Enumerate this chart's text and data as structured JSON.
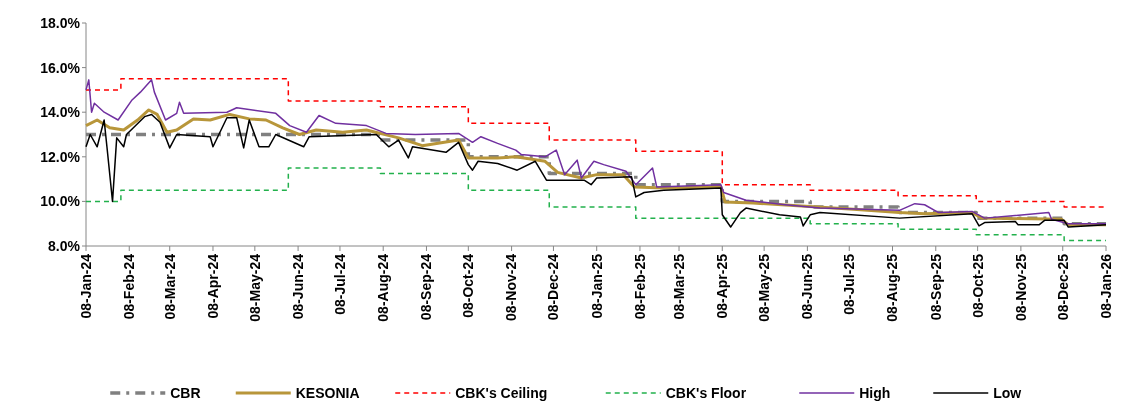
{
  "chart_data": {
    "type": "line",
    "xlim": [
      "2024-01-08",
      "2026-01-08"
    ],
    "xticks": [
      {
        "value": "2024-01-08",
        "label": "08-Jan-24"
      },
      {
        "value": "2024-02-08",
        "label": "08-Feb-24"
      },
      {
        "value": "2024-03-08",
        "label": "08-Mar-24"
      },
      {
        "value": "2024-04-08",
        "label": "08-Apr-24"
      },
      {
        "value": "2024-05-08",
        "label": "08-May-24"
      },
      {
        "value": "2024-06-08",
        "label": "08-Jun-24"
      },
      {
        "value": "2024-07-08",
        "label": "08-Jul-24"
      },
      {
        "value": "2024-08-08",
        "label": "08-Aug-24"
      },
      {
        "value": "2024-09-08",
        "label": "08-Sep-24"
      },
      {
        "value": "2024-10-08",
        "label": "08-Oct-24"
      },
      {
        "value": "2024-11-08",
        "label": "08-Nov-24"
      },
      {
        "value": "2024-12-08",
        "label": "08-Dec-24"
      },
      {
        "value": "2025-01-08",
        "label": "08-Jan-25"
      },
      {
        "value": "2025-02-08",
        "label": "08-Feb-25"
      },
      {
        "value": "2025-03-08",
        "label": "08-Mar-25"
      },
      {
        "value": "2025-04-08",
        "label": "08-Apr-25"
      },
      {
        "value": "2025-05-08",
        "label": "08-May-25"
      },
      {
        "value": "2025-06-08",
        "label": "08-Jun-25"
      },
      {
        "value": "2025-07-08",
        "label": "08-Jul-25"
      },
      {
        "value": "2025-08-08",
        "label": "08-Aug-25"
      },
      {
        "value": "2025-09-08",
        "label": "08-Sep-25"
      },
      {
        "value": "2025-10-08",
        "label": "08-Oct-25"
      },
      {
        "value": "2025-11-08",
        "label": "08-Nov-25"
      },
      {
        "value": "2025-12-08",
        "label": "08-Dec-25"
      },
      {
        "value": "2026-01-08",
        "label": "08-Jan-26"
      }
    ],
    "ylim": [
      8,
      18
    ],
    "yticks": [
      {
        "value": 8,
        "label": "8.0%"
      },
      {
        "value": 10,
        "label": "10.0%"
      },
      {
        "value": 12,
        "label": "12.0%"
      },
      {
        "value": 14,
        "label": "14.0%"
      },
      {
        "value": 16,
        "label": "16.0%"
      },
      {
        "value": 18,
        "label": "18.0%"
      }
    ],
    "grid": false,
    "legend": "bottom",
    "series": [
      {
        "name": "CBR",
        "type": "step",
        "color": "#808080",
        "line_style": "dashed",
        "x": [
          "2024-01-08",
          "2024-08-06",
          "2024-10-08",
          "2024-12-05",
          "2025-02-05",
          "2025-04-08",
          "2025-06-10",
          "2025-08-12",
          "2025-10-07",
          "2025-12-09",
          "2026-01-08"
        ],
        "values": [
          13,
          12.75,
          12,
          11.25,
          10.75,
          10,
          9.75,
          9.5,
          9.25,
          9,
          9
        ]
      },
      {
        "name": "KESONIA",
        "color": "#b8963a",
        "line_style": "solid",
        "x": [
          "2024-01-08",
          "2024-01-16",
          "2024-01-25",
          "2024-02-04",
          "2024-02-14",
          "2024-02-22",
          "2024-02-28",
          "2024-03-06",
          "2024-03-13",
          "2024-03-25",
          "2024-04-06",
          "2024-04-20",
          "2024-05-04",
          "2024-05-16",
          "2024-05-28",
          "2024-06-09",
          "2024-06-21",
          "2024-07-10",
          "2024-07-27",
          "2024-08-19",
          "2024-09-05",
          "2024-10-01",
          "2024-10-08",
          "2024-10-29",
          "2024-11-11",
          "2024-12-02",
          "2024-12-11",
          "2024-12-28",
          "2025-01-08",
          "2025-01-27",
          "2025-02-04",
          "2025-02-25",
          "2025-04-07",
          "2025-04-10",
          "2025-04-30",
          "2025-06-01",
          "2025-07-11",
          "2025-08-13",
          "2025-08-31",
          "2025-10-04",
          "2025-10-11",
          "2025-12-07",
          "2025-12-12",
          "2026-01-08"
        ],
        "values": [
          13.4,
          13.65,
          13.3,
          13.2,
          13.65,
          14.1,
          13.9,
          13.1,
          13.2,
          13.7,
          13.65,
          13.9,
          13.7,
          13.65,
          13.3,
          13,
          13.2,
          13.1,
          13.2,
          12.85,
          12.5,
          12.75,
          11.95,
          11.95,
          12,
          11.8,
          11.3,
          11.05,
          11.2,
          11.2,
          10.65,
          10.6,
          10.65,
          9.97,
          9.93,
          9.8,
          9.65,
          9.5,
          9.45,
          9.5,
          9.25,
          9.2,
          8.95,
          8.95
        ]
      },
      {
        "name": "CBK's Ceiling",
        "type": "step",
        "color": "#ff0000",
        "line_style": "dashed",
        "x": [
          "2024-01-08",
          "2024-02-02",
          "2024-06-01",
          "2024-08-06",
          "2024-10-08",
          "2024-12-05",
          "2025-02-05",
          "2025-04-08",
          "2025-06-10",
          "2025-08-12",
          "2025-10-07",
          "2025-12-09",
          "2026-01-08"
        ],
        "values": [
          15,
          15.5,
          14.5,
          14.25,
          13.5,
          12.75,
          12.25,
          10.75,
          10.5,
          10.25,
          10,
          9.75,
          9.75
        ]
      },
      {
        "name": "CBK's Floor",
        "type": "step",
        "color": "#22b14c",
        "line_style": "dashed",
        "x": [
          "2024-01-08",
          "2024-02-02",
          "2024-06-01",
          "2024-08-06",
          "2024-10-08",
          "2024-12-05",
          "2025-02-05",
          "2025-04-08",
          "2025-06-10",
          "2025-08-12",
          "2025-10-07",
          "2025-12-09",
          "2026-01-08"
        ],
        "values": [
          10,
          10.5,
          11.5,
          11.25,
          10.5,
          9.75,
          9.25,
          9.25,
          9,
          8.75,
          8.5,
          8.25,
          8.25
        ]
      },
      {
        "name": "High",
        "color": "#7030a0",
        "line_style": "solid",
        "x": [
          "2024-01-08",
          "2024-01-10",
          "2024-01-12",
          "2024-01-14",
          "2024-01-21",
          "2024-01-31",
          "2024-02-10",
          "2024-02-16",
          "2024-02-24",
          "2024-02-26",
          "2024-03-05",
          "2024-03-13",
          "2024-03-15",
          "2024-03-18",
          "2024-04-18",
          "2024-04-25",
          "2024-05-23",
          "2024-06-02",
          "2024-06-14",
          "2024-06-23",
          "2024-07-05",
          "2024-07-27",
          "2024-08-10",
          "2024-08-31",
          "2024-10-01",
          "2024-10-11",
          "2024-10-17",
          "2024-10-29",
          "2024-11-11",
          "2024-11-15",
          "2024-12-02",
          "2024-12-10",
          "2024-12-16",
          "2024-12-25",
          "2024-12-28",
          "2025-01-06",
          "2025-01-13",
          "2025-01-29",
          "2025-02-05",
          "2025-02-17",
          "2025-02-20",
          "2025-04-07",
          "2025-04-09",
          "2025-04-25",
          "2025-05-23",
          "2025-06-17",
          "2025-08-13",
          "2025-08-24",
          "2025-08-31",
          "2025-09-10",
          "2025-10-04",
          "2025-10-13",
          "2025-11-28",
          "2025-11-30",
          "2025-12-12",
          "2026-01-08"
        ],
        "values": [
          15,
          15.45,
          14,
          14.4,
          14,
          13.65,
          14.55,
          14.9,
          15.45,
          14.9,
          13.65,
          13.95,
          14.45,
          13.95,
          14,
          14.2,
          13.95,
          13.4,
          13.1,
          13.85,
          13.5,
          13.4,
          13.05,
          13,
          13.05,
          12.65,
          12.9,
          12.6,
          12.3,
          12.1,
          12,
          12.3,
          11.2,
          11.85,
          11.05,
          11.8,
          11.65,
          11.35,
          10.75,
          11.5,
          10.65,
          10.75,
          10.4,
          10.05,
          9.85,
          9.7,
          9.6,
          9.9,
          9.85,
          9.5,
          9.55,
          9.25,
          9.5,
          9.2,
          9,
          9
        ]
      },
      {
        "name": "Low",
        "color": "#000000",
        "line_style": "solid",
        "x": [
          "2024-01-08",
          "2024-01-11",
          "2024-01-16",
          "2024-01-21",
          "2024-01-23",
          "2024-01-27",
          "2024-01-30",
          "2024-02-04",
          "2024-02-06",
          "2024-02-19",
          "2024-02-24",
          "2024-03-01",
          "2024-03-08",
          "2024-03-13",
          "2024-04-06",
          "2024-04-08",
          "2024-04-18",
          "2024-04-25",
          "2024-04-30",
          "2024-05-04",
          "2024-05-11",
          "2024-05-18",
          "2024-05-23",
          "2024-06-12",
          "2024-06-16",
          "2024-08-03",
          "2024-08-12",
          "2024-08-19",
          "2024-08-26",
          "2024-08-29",
          "2024-09-22",
          "2024-10-01",
          "2024-10-08",
          "2024-10-11",
          "2024-10-15",
          "2024-10-29",
          "2024-11-12",
          "2024-11-25",
          "2024-12-03",
          "2024-12-30",
          "2025-01-04",
          "2025-01-08",
          "2025-02-02",
          "2025-02-05",
          "2025-02-11",
          "2025-02-25",
          "2025-04-07",
          "2025-04-08",
          "2025-04-14",
          "2025-04-21",
          "2025-04-25",
          "2025-05-19",
          "2025-06-03",
          "2025-06-05",
          "2025-06-10",
          "2025-06-17",
          "2025-08-13",
          "2025-10-04",
          "2025-10-09",
          "2025-10-13",
          "2025-11-04",
          "2025-11-06",
          "2025-11-21",
          "2025-11-25",
          "2025-12-09",
          "2025-12-12",
          "2026-01-08"
        ],
        "values": [
          12.45,
          13,
          12.45,
          13.65,
          12.45,
          10,
          12.85,
          12.45,
          13,
          13.8,
          13.9,
          13.55,
          12.4,
          13,
          12.9,
          12.45,
          13.75,
          13.75,
          12.4,
          13.65,
          12.45,
          12.45,
          13,
          12.45,
          12.9,
          13,
          12.45,
          12.75,
          11.95,
          12.45,
          12.2,
          12.65,
          11.65,
          11.4,
          11.8,
          11.7,
          11.4,
          11.8,
          10.95,
          10.95,
          10.75,
          11.05,
          11.1,
          10.2,
          10.4,
          10.5,
          10.6,
          9.4,
          8.85,
          9.5,
          9.7,
          9.4,
          9.3,
          8.9,
          9.4,
          9.5,
          9.25,
          9.45,
          8.9,
          9.05,
          9.1,
          8.95,
          8.95,
          9.15,
          9.15,
          8.85,
          8.95
        ]
      }
    ]
  }
}
